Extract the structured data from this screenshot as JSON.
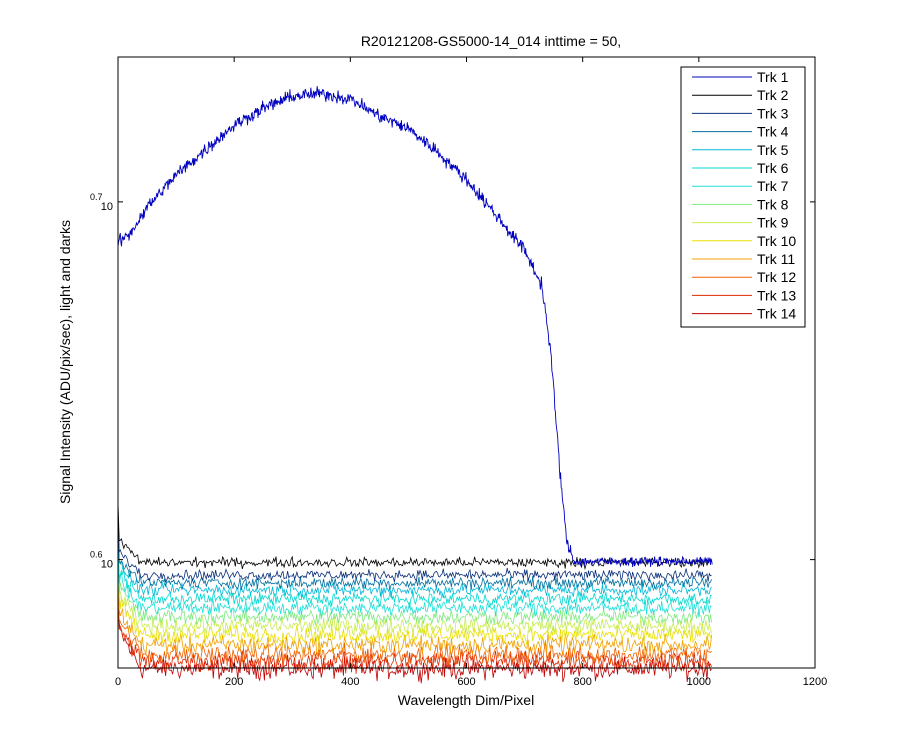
{
  "chart_data": {
    "type": "line",
    "title": "R20121208-GS5000-14_014 inttime = 50,",
    "xlabel": "Wavelength Dim/Pixel",
    "ylabel": "Signal Intensity (ADU/pix/sec), light and darks",
    "xlim": [
      0,
      1200
    ],
    "ylim_log_exponent": [
      0.5697,
      0.7405
    ],
    "y_scale": "log",
    "x_ticks": [
      "0",
      "200",
      "400",
      "600",
      "800",
      "1000",
      "1200"
    ],
    "y_ticks": [
      {
        "exponent": 0.6,
        "base": "10",
        "exp_label": "0.6"
      },
      {
        "exponent": 0.7,
        "base": "10",
        "exp_label": "0.7"
      }
    ],
    "grid": false,
    "legend_position": "top-right",
    "legend": [
      "Trk 1",
      "Trk 2",
      "Trk 3",
      "Trk 4",
      "Trk 5",
      "Trk 6",
      "Trk 7",
      "Trk 8",
      "Trk 9",
      "Trk 10",
      "Trk 11",
      "Trk 12",
      "Trk 13",
      "Trk 14"
    ],
    "colors": [
      "#0000bf",
      "#000000",
      "#0a2f7a",
      "#0070a0",
      "#00b8d8",
      "#00d8d0",
      "#20e0d8",
      "#80e880",
      "#c8ec50",
      "#e8e000",
      "#f0a000",
      "#f06000",
      "#e02800",
      "#c00000"
    ],
    "trk1_profile": {
      "x": [
        0,
        20,
        50,
        100,
        150,
        200,
        250,
        300,
        350,
        400,
        450,
        500,
        550,
        600,
        650,
        700,
        730,
        745,
        760,
        772,
        785,
        1023
      ],
      "log10_y": [
        0.6887,
        0.691,
        0.6985,
        0.7075,
        0.7145,
        0.7215,
        0.7262,
        0.7295,
        0.7303,
        0.7288,
        0.724,
        0.7205,
        0.714,
        0.7062,
        0.6965,
        0.6865,
        0.6765,
        0.658,
        0.6265,
        0.6055,
        0.5995,
        0.5995
      ]
    },
    "dark_tracks_log10_y_plateau": [
      0.5995,
      0.5992,
      0.5957,
      0.5935,
      0.5915,
      0.589,
      0.5865,
      0.584,
      0.5815,
      0.579,
      0.5762,
      0.5735,
      0.5715,
      0.5695
    ]
  }
}
